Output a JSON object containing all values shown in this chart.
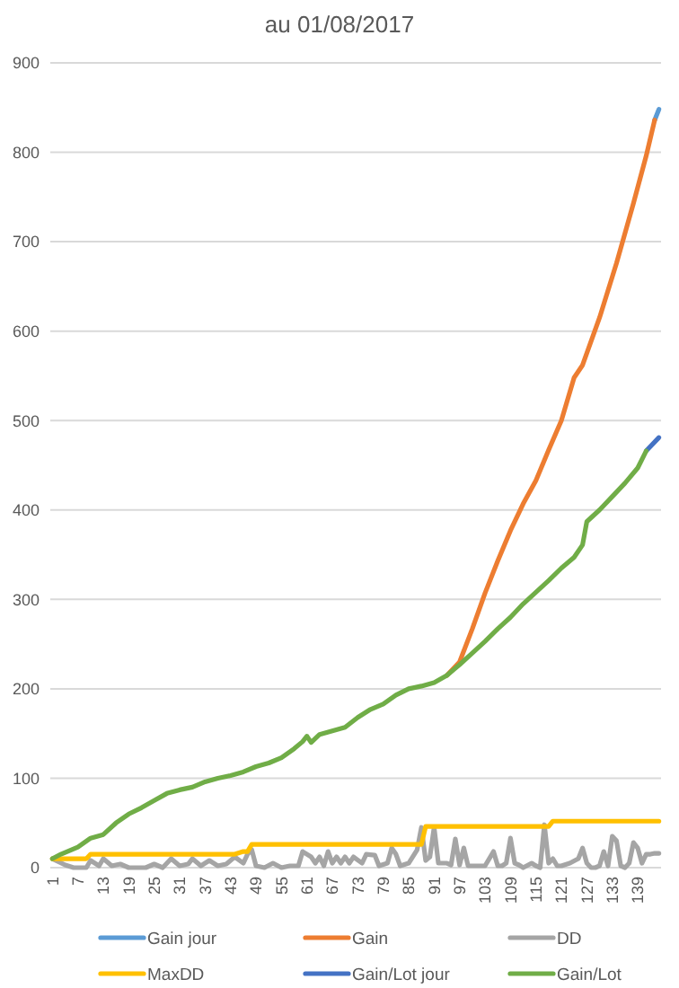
{
  "chart_data": {
    "type": "line",
    "title": "au 01/08/2017",
    "xlim": [
      0.5,
      144.5
    ],
    "xticks": [
      1,
      7,
      13,
      19,
      25,
      31,
      37,
      43,
      49,
      55,
      61,
      67,
      73,
      79,
      85,
      91,
      97,
      103,
      109,
      115,
      121,
      127,
      133,
      139
    ],
    "ylim": [
      0,
      900
    ],
    "yticks": [
      0,
      100,
      200,
      300,
      400,
      500,
      600,
      700,
      800,
      900
    ],
    "grid": "y",
    "legend": "bottom",
    "series": [
      {
        "name": "Gain jour",
        "color": "#5b9bd5",
        "x": [
          143,
          144
        ],
        "values": [
          836,
          848
        ]
      },
      {
        "name": "Gain",
        "color": "#ed7d31",
        "x": [
          94,
          97,
          100,
          103,
          106,
          109,
          112,
          115,
          118,
          121,
          124,
          126,
          130,
          134,
          138,
          141,
          143
        ],
        "values": [
          215,
          230,
          267,
          307,
          343,
          377,
          407,
          433,
          467,
          500,
          548,
          562,
          615,
          676,
          743,
          796,
          836
        ]
      },
      {
        "name": "DD",
        "color": "#a5a5a5",
        "x": [
          1,
          4,
          6,
          9,
          10,
          12,
          13,
          15,
          17,
          19,
          23,
          25,
          27,
          29,
          31,
          33,
          34,
          36,
          38,
          40,
          42,
          44,
          46,
          47,
          48,
          49,
          51,
          53,
          55,
          57,
          59,
          60,
          62,
          63,
          64,
          65,
          66,
          67,
          68,
          69,
          70,
          71,
          72,
          74,
          75,
          77,
          78,
          80,
          81,
          82,
          83,
          85,
          87,
          88,
          89,
          90,
          91,
          92,
          94,
          95,
          96,
          97,
          98,
          99,
          101,
          103,
          105,
          106,
          107,
          108,
          109,
          110,
          111,
          112,
          114,
          115,
          116,
          117,
          118,
          119,
          120,
          121,
          123,
          125,
          126,
          127,
          128,
          129,
          130,
          131,
          132,
          133,
          134,
          135,
          136,
          137,
          138,
          139,
          140,
          141,
          142,
          143,
          144
        ],
        "values": [
          10,
          3,
          0,
          0,
          8,
          2,
          10,
          2,
          4,
          0,
          0,
          4,
          0,
          10,
          2,
          4,
          10,
          2,
          8,
          2,
          4,
          12,
          5,
          15,
          20,
          2,
          0,
          5,
          0,
          2,
          2,
          18,
          12,
          5,
          12,
          2,
          18,
          5,
          12,
          5,
          12,
          5,
          12,
          5,
          15,
          14,
          2,
          5,
          22,
          15,
          2,
          5,
          20,
          45,
          8,
          12,
          45,
          5,
          5,
          3,
          32,
          3,
          22,
          2,
          2,
          2,
          18,
          2,
          2,
          5,
          33,
          5,
          3,
          0,
          5,
          2,
          0,
          48,
          5,
          10,
          2,
          2,
          5,
          10,
          22,
          5,
          0,
          0,
          2,
          18,
          2,
          35,
          30,
          2,
          0,
          5,
          28,
          22,
          5,
          15,
          15,
          16,
          16
        ]
      },
      {
        "name": "MaxDD",
        "color": "#ffc000",
        "x": [
          1,
          9,
          10,
          44,
          46,
          47,
          48,
          88,
          89,
          118,
          119,
          144
        ],
        "values": [
          10,
          10,
          15,
          15,
          18,
          18,
          26,
          26,
          46,
          46,
          52,
          52
        ]
      },
      {
        "name": "Gain/Lot jour",
        "color": "#4472c4",
        "x": [
          141,
          144
        ],
        "values": [
          466,
          481
        ]
      },
      {
        "name": "Gain/Lot",
        "color": "#70ad47",
        "x": [
          1,
          3,
          7,
          10,
          13,
          16,
          19,
          22,
          25,
          28,
          31,
          34,
          37,
          40,
          43,
          46,
          49,
          52,
          55,
          58,
          60,
          61,
          62,
          64,
          67,
          70,
          73,
          76,
          79,
          82,
          85,
          88,
          91,
          94,
          97,
          100,
          103,
          106,
          109,
          112,
          115,
          118,
          121,
          124,
          126,
          127,
          130,
          133,
          136,
          139,
          141
        ],
        "values": [
          10,
          15,
          23,
          33,
          37,
          50,
          60,
          67,
          75,
          83,
          87,
          90,
          96,
          100,
          103,
          107,
          113,
          117,
          123,
          133,
          141,
          147,
          140,
          149,
          153,
          157,
          168,
          177,
          183,
          193,
          200,
          203,
          207,
          215,
          227,
          240,
          253,
          267,
          280,
          295,
          308,
          321,
          335,
          347,
          361,
          387,
          400,
          415,
          430,
          447,
          466
        ]
      }
    ]
  }
}
